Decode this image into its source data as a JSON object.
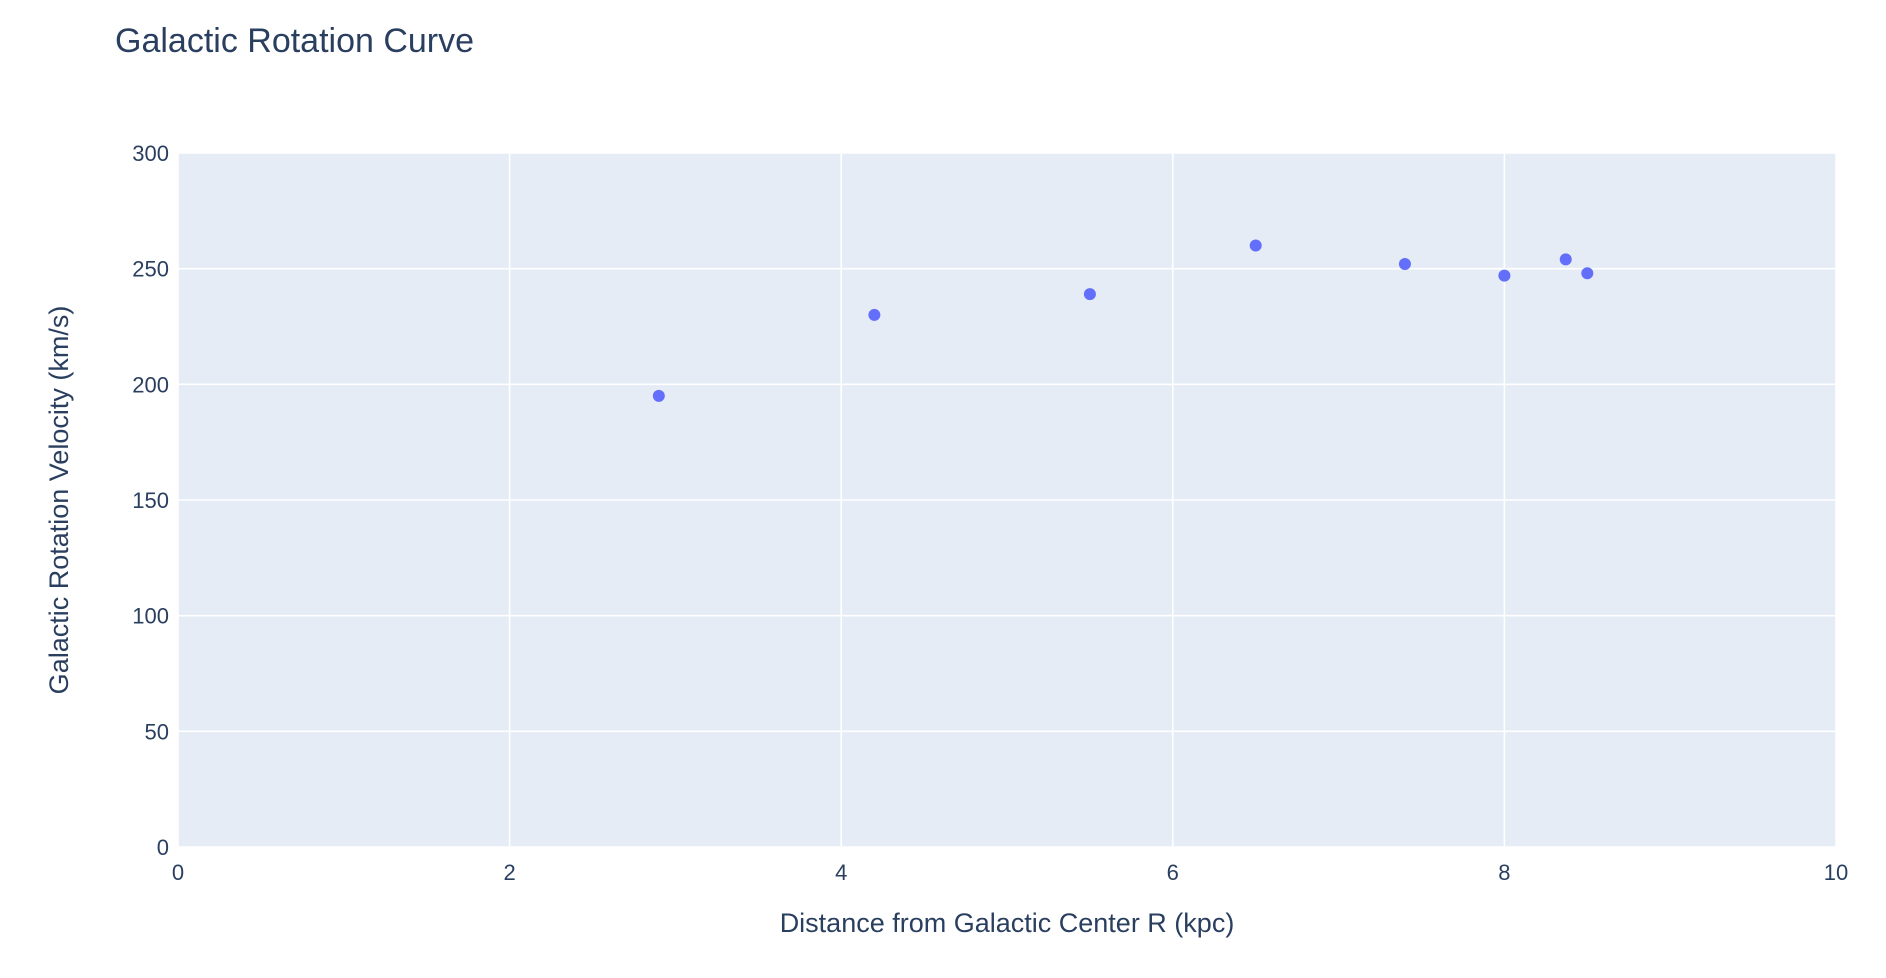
{
  "chart_data": {
    "type": "scatter",
    "title": "Galactic Rotation Curve",
    "xlabel": "Distance from Galactic Center R (kpc)",
    "ylabel": "Galactic Rotation Velocity (km/s)",
    "xlim": [
      0,
      10
    ],
    "ylim": [
      0,
      300
    ],
    "x_ticks": [
      "0",
      "2",
      "4",
      "6",
      "8",
      "10"
    ],
    "y_ticks": [
      "0",
      "50",
      "100",
      "150",
      "200",
      "250",
      "300"
    ],
    "grid": true,
    "legend": "none",
    "series": [
      {
        "color": "#636efa",
        "points": [
          {
            "x": 2.9,
            "y": 195
          },
          {
            "x": 4.2,
            "y": 230
          },
          {
            "x": 5.5,
            "y": 239
          },
          {
            "x": 6.5,
            "y": 260
          },
          {
            "x": 7.4,
            "y": 252
          },
          {
            "x": 8.0,
            "y": 247
          },
          {
            "x": 8.37,
            "y": 254
          },
          {
            "x": 8.5,
            "y": 248
          }
        ]
      }
    ]
  },
  "colors": {
    "plot_background": "#e5ecf6",
    "grid": "#ffffff",
    "text": "#2a3f5f",
    "marker": "#636efa"
  }
}
